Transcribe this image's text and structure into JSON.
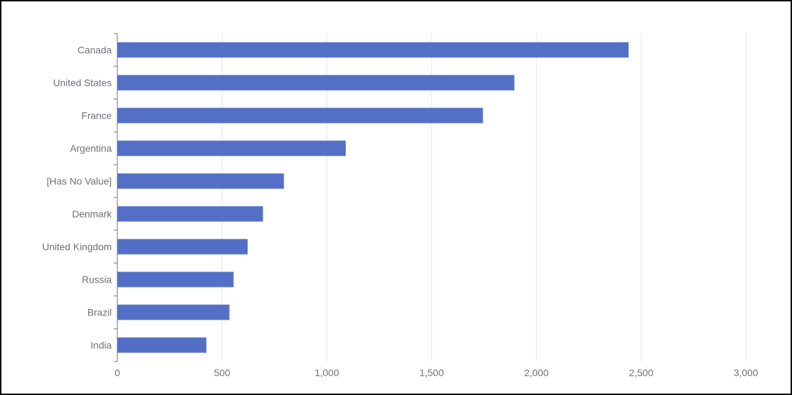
{
  "colors": {
    "bar": "#5470c6",
    "grid": "#e6e6e6",
    "axis": "#6e7079",
    "label": "#6e7079",
    "border": "#000000"
  },
  "chart_data": {
    "type": "bar",
    "orientation": "horizontal",
    "title": "",
    "xlabel": "",
    "ylabel": "",
    "categories": [
      "Canada",
      "United States",
      "France",
      "Argentina",
      "[Has No Value]",
      "Denmark",
      "United Kingdom",
      "Russia",
      "Brazil",
      "India"
    ],
    "values": [
      2440,
      1895,
      1745,
      1090,
      795,
      695,
      622,
      555,
      535,
      425
    ],
    "xlim": [
      0,
      3000
    ],
    "xticks": [
      0,
      500,
      1000,
      1500,
      2000,
      2500,
      3000
    ],
    "xtick_labels": [
      "0",
      "500",
      "1,000",
      "1,500",
      "2,000",
      "2,500",
      "3,000"
    ],
    "grid": true,
    "legend": "none"
  }
}
